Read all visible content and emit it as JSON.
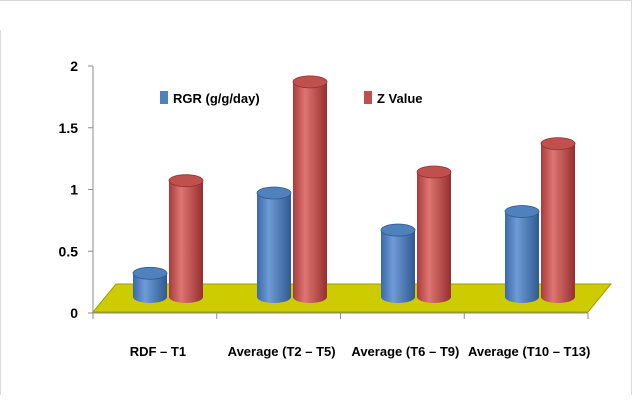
{
  "chart_data": {
    "type": "bar",
    "title": "",
    "xlabel": "",
    "ylabel": "",
    "categories": [
      "RDF  – T1",
      "Average (T2 – T5)",
      "Average (T6 – T9)",
      "Average (T10 – T13)"
    ],
    "series": [
      {
        "name": "RGR (g/g/day)",
        "color": "#4F81BD",
        "values": [
          0.2,
          0.85,
          0.55,
          0.7
        ]
      },
      {
        "name": "Z Value",
        "color": "#C0504D",
        "values": [
          0.95,
          1.75,
          1.02,
          1.25
        ]
      }
    ],
    "ylim": [
      0,
      2
    ],
    "yticks": [
      "0",
      "0.5",
      "1",
      "1.5",
      "2"
    ],
    "legend_position": "top",
    "grid": false,
    "floor_color": "#CCCC00",
    "style": "3d-cylinder"
  }
}
